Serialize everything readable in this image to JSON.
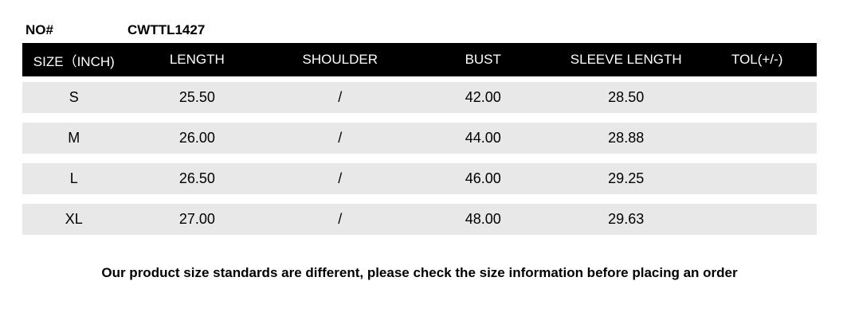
{
  "title": {
    "no_label": "NO#",
    "product_code": "CWTTL1427"
  },
  "table": {
    "header_bg": "#000000",
    "header_text_color": "#ffffff",
    "row_bg": "#e8e8e8",
    "columns": [
      "SIZE（INCH)",
      "LENGTH",
      "SHOULDER",
      "BUST",
      "SLEEVE LENGTH",
      "TOL(+/-)"
    ],
    "rows": [
      {
        "size": "S",
        "length": "25.50",
        "shoulder": "/",
        "bust": "42.00",
        "sleeve_length": "28.50",
        "tol": ""
      },
      {
        "size": "M",
        "length": "26.00",
        "shoulder": "/",
        "bust": "44.00",
        "sleeve_length": "28.88",
        "tol": ""
      },
      {
        "size": "L",
        "length": "26.50",
        "shoulder": "/",
        "bust": "46.00",
        "sleeve_length": "29.25",
        "tol": ""
      },
      {
        "size": "XL",
        "length": "27.00",
        "shoulder": "/",
        "bust": "48.00",
        "sleeve_length": "29.63",
        "tol": ""
      }
    ]
  },
  "footer": {
    "note": "Our product size standards are different, please check the size information before placing an order"
  }
}
